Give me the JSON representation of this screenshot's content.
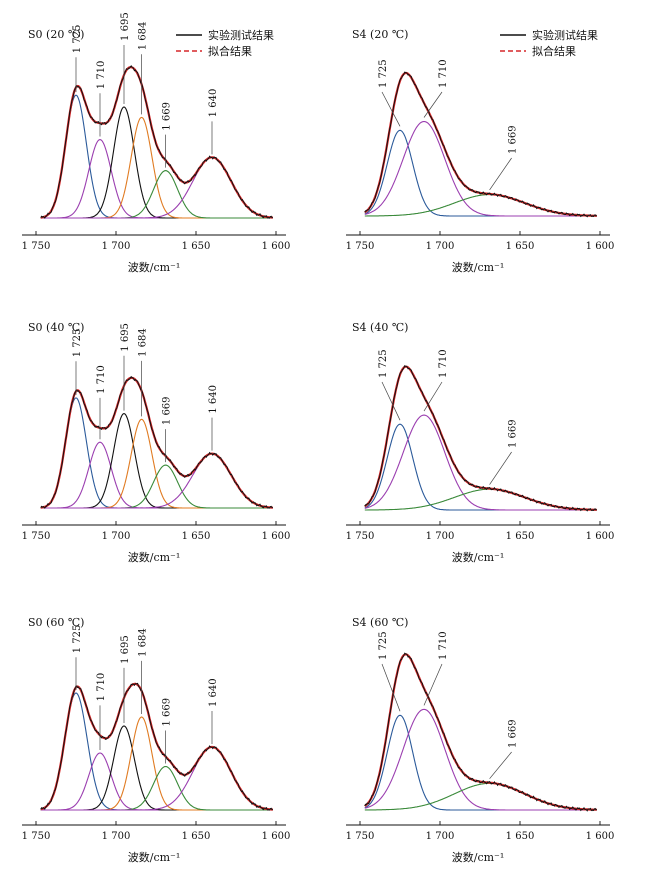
{
  "legend": {
    "exp_label": "实验测试结果",
    "fit_label": "拟合结果",
    "exp_color": "#111111",
    "fit_color": "#d62728"
  },
  "colors": {
    "1725": "#2b5a9a",
    "1710": "#9b3fb0",
    "1695": "#111111",
    "1684": "#e07b22",
    "1669": "#3a8a3a",
    "1640": "#9b3fb0"
  },
  "chart_data": [
    {
      "type": "line",
      "title": "S0 (20 ℃)",
      "xlabel": "波数/cm⁻¹",
      "ylabel": "",
      "x_range": [
        1750,
        1600
      ],
      "x_reversed": true,
      "xticks": [
        1750,
        1700,
        1650,
        1600
      ],
      "xtick_labels": [
        "1 750",
        "1 700",
        "1 650",
        "1 600"
      ],
      "y_range": [
        0,
        1.0
      ],
      "legend": true,
      "components": [
        {
          "center": 1725,
          "label": "1 725",
          "amp": 0.83,
          "width": 6.5
        },
        {
          "center": 1710,
          "label": "1 710",
          "amp": 0.53,
          "width": 7.0
        },
        {
          "center": 1695,
          "label": "1 695",
          "amp": 0.75,
          "width": 6.5
        },
        {
          "center": 1684,
          "label": "1 684",
          "amp": 0.68,
          "width": 6.5
        },
        {
          "center": 1669,
          "label": "1 669",
          "amp": 0.32,
          "width": 7.5
        },
        {
          "center": 1640,
          "label": "1 640",
          "amp": 0.41,
          "width": 12.0
        }
      ]
    },
    {
      "type": "line",
      "title": "S4 (20 ℃)",
      "xlabel": "波数/cm⁻¹",
      "ylabel": "",
      "x_range": [
        1750,
        1600
      ],
      "x_reversed": true,
      "xticks": [
        1750,
        1700,
        1650,
        1600
      ],
      "xtick_labels": [
        "1 750",
        "1 700",
        "1 650",
        "1 600"
      ],
      "y_range": [
        0,
        1.0
      ],
      "legend": true,
      "components": [
        {
          "center": 1725,
          "label": "1 725",
          "amp": 0.68,
          "width": 8.0
        },
        {
          "center": 1710,
          "label": "1 710",
          "amp": 0.75,
          "width": 13.0
        },
        {
          "center": 1669,
          "label": "1 669",
          "amp": 0.17,
          "width": 22.0
        }
      ]
    },
    {
      "type": "line",
      "title": "S0 (40 ℃)",
      "xlabel": "波数/cm⁻¹",
      "ylabel": "",
      "x_range": [
        1750,
        1600
      ],
      "x_reversed": true,
      "xticks": [
        1750,
        1700,
        1650,
        1600
      ],
      "xtick_labels": [
        "1 750",
        "1 700",
        "1 650",
        "1 600"
      ],
      "y_range": [
        0,
        1.0
      ],
      "legend": false,
      "components": [
        {
          "center": 1725,
          "label": "1 725",
          "amp": 0.77,
          "width": 6.5
        },
        {
          "center": 1710,
          "label": "1 710",
          "amp": 0.46,
          "width": 7.0
        },
        {
          "center": 1695,
          "label": "1 695",
          "amp": 0.66,
          "width": 6.5
        },
        {
          "center": 1684,
          "label": "1 684",
          "amp": 0.62,
          "width": 6.5
        },
        {
          "center": 1669,
          "label": "1 669",
          "amp": 0.3,
          "width": 7.5
        },
        {
          "center": 1640,
          "label": "1 640",
          "amp": 0.38,
          "width": 12.0
        }
      ]
    },
    {
      "type": "line",
      "title": "S4 (40 ℃)",
      "xlabel": "波数/cm⁻¹",
      "ylabel": "",
      "x_range": [
        1750,
        1600
      ],
      "x_reversed": true,
      "xticks": [
        1750,
        1700,
        1650,
        1600
      ],
      "xtick_labels": [
        "1 750",
        "1 700",
        "1 650",
        "1 600"
      ],
      "y_range": [
        0,
        1.0
      ],
      "legend": false,
      "components": [
        {
          "center": 1725,
          "label": "1 725",
          "amp": 0.66,
          "width": 8.0
        },
        {
          "center": 1710,
          "label": "1 710",
          "amp": 0.73,
          "width": 13.0
        },
        {
          "center": 1669,
          "label": "1 669",
          "amp": 0.16,
          "width": 22.0
        }
      ]
    },
    {
      "type": "line",
      "title": "S0 (60 ℃)",
      "xlabel": "波数/cm⁻¹",
      "ylabel": "",
      "x_range": [
        1750,
        1600
      ],
      "x_reversed": true,
      "xticks": [
        1750,
        1700,
        1650,
        1600
      ],
      "xtick_labels": [
        "1 750",
        "1 700",
        "1 650",
        "1 600"
      ],
      "y_range": [
        0,
        1.0
      ],
      "legend": false,
      "components": [
        {
          "center": 1725,
          "label": "1 725",
          "amp": 0.78,
          "width": 7.0
        },
        {
          "center": 1710,
          "label": "1 710",
          "amp": 0.38,
          "width": 7.0
        },
        {
          "center": 1695,
          "label": "1 695",
          "amp": 0.56,
          "width": 6.5
        },
        {
          "center": 1684,
          "label": "1 684",
          "amp": 0.62,
          "width": 6.5
        },
        {
          "center": 1669,
          "label": "1 669",
          "amp": 0.29,
          "width": 7.5
        },
        {
          "center": 1640,
          "label": "1 640",
          "amp": 0.42,
          "width": 12.0
        }
      ]
    },
    {
      "type": "line",
      "title": "S4 (60 ℃)",
      "xlabel": "波数/cm⁻¹",
      "ylabel": "",
      "x_range": [
        1750,
        1600
      ],
      "x_reversed": true,
      "xticks": [
        1750,
        1700,
        1650,
        1600
      ],
      "xtick_labels": [
        "1 750",
        "1 700",
        "1 650",
        "1 600"
      ],
      "y_range": [
        0,
        1.0
      ],
      "legend": false,
      "components": [
        {
          "center": 1725,
          "label": "1 725",
          "amp": 0.64,
          "width": 8.0
        },
        {
          "center": 1710,
          "label": "1 710",
          "amp": 0.68,
          "width": 13.0
        },
        {
          "center": 1669,
          "label": "1 669",
          "amp": 0.18,
          "width": 22.0
        }
      ]
    }
  ]
}
